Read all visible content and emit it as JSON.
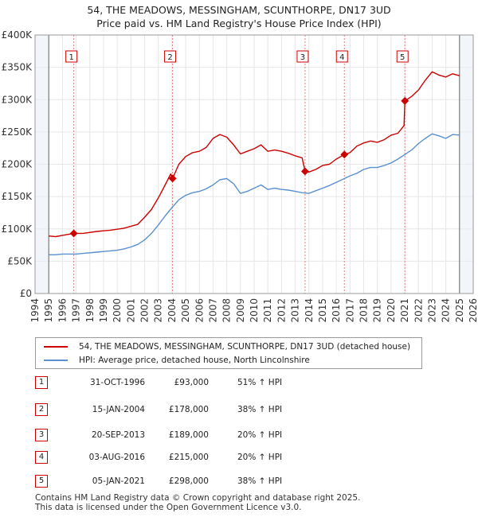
{
  "chart_data": {
    "type": "line",
    "title": "54, THE MEADOWS, MESSINGHAM, SCUNTHORPE, DN17 3UD",
    "subtitle": "Price paid vs. HM Land Registry's House Price Index (HPI)",
    "xlim": [
      1994,
      2026
    ],
    "ylim": [
      0,
      400000
    ],
    "x_ticks": [
      "1994",
      "1995",
      "1996",
      "1997",
      "1998",
      "1999",
      "2000",
      "2001",
      "2002",
      "2003",
      "2004",
      "2005",
      "2006",
      "2007",
      "2008",
      "2009",
      "2010",
      "2011",
      "2012",
      "2013",
      "2014",
      "2015",
      "2016",
      "2017",
      "2018",
      "2019",
      "2020",
      "2021",
      "2022",
      "2023",
      "2024",
      "2025",
      "2026"
    ],
    "y_ticks": [
      {
        "value": 0,
        "label": "£0"
      },
      {
        "value": 50000,
        "label": "£50K"
      },
      {
        "value": 100000,
        "label": "£100K"
      },
      {
        "value": 150000,
        "label": "£150K"
      },
      {
        "value": 200000,
        "label": "£200K"
      },
      {
        "value": 250000,
        "label": "£250K"
      },
      {
        "value": 300000,
        "label": "£300K"
      },
      {
        "value": 350000,
        "label": "£350K"
      },
      {
        "value": 400000,
        "label": "£400K"
      }
    ],
    "data_start": 1995,
    "data_end": 2025,
    "series": [
      {
        "name": "54, THE MEADOWS, MESSINGHAM, SCUNTHORPE, DN17 3UD (detached house)",
        "color": "#cc0000",
        "points": [
          [
            1995.0,
            89000
          ],
          [
            1995.5,
            88000
          ],
          [
            1996.0,
            90000
          ],
          [
            1996.83,
            93000
          ],
          [
            1997.5,
            93000
          ],
          [
            1998.5,
            96000
          ],
          [
            1999.5,
            98000
          ],
          [
            2000.5,
            101000
          ],
          [
            2001.5,
            107000
          ],
          [
            2002.0,
            118000
          ],
          [
            2002.5,
            130000
          ],
          [
            2003.0,
            148000
          ],
          [
            2003.5,
            168000
          ],
          [
            2003.9,
            185000
          ],
          [
            2004.04,
            178000
          ],
          [
            2004.5,
            200000
          ],
          [
            2005.0,
            212000
          ],
          [
            2005.5,
            218000
          ],
          [
            2006.0,
            220000
          ],
          [
            2006.5,
            226000
          ],
          [
            2007.0,
            240000
          ],
          [
            2007.5,
            246000
          ],
          [
            2008.0,
            242000
          ],
          [
            2008.5,
            230000
          ],
          [
            2009.0,
            216000
          ],
          [
            2009.5,
            220000
          ],
          [
            2010.0,
            224000
          ],
          [
            2010.5,
            230000
          ],
          [
            2011.0,
            220000
          ],
          [
            2011.5,
            222000
          ],
          [
            2012.0,
            220000
          ],
          [
            2012.5,
            217000
          ],
          [
            2013.0,
            213000
          ],
          [
            2013.5,
            210000
          ],
          [
            2013.72,
            189000
          ],
          [
            2014.0,
            188000
          ],
          [
            2014.5,
            192000
          ],
          [
            2015.0,
            198000
          ],
          [
            2015.5,
            200000
          ],
          [
            2016.0,
            208000
          ],
          [
            2016.59,
            215000
          ],
          [
            2017.0,
            218000
          ],
          [
            2017.5,
            228000
          ],
          [
            2018.0,
            233000
          ],
          [
            2018.5,
            236000
          ],
          [
            2019.0,
            234000
          ],
          [
            2019.5,
            238000
          ],
          [
            2020.0,
            245000
          ],
          [
            2020.5,
            248000
          ],
          [
            2020.95,
            260000
          ],
          [
            2021.01,
            298000
          ],
          [
            2021.5,
            305000
          ],
          [
            2022.0,
            315000
          ],
          [
            2022.5,
            330000
          ],
          [
            2023.0,
            343000
          ],
          [
            2023.5,
            338000
          ],
          [
            2024.0,
            335000
          ],
          [
            2024.5,
            340000
          ],
          [
            2025.0,
            337000
          ]
        ]
      },
      {
        "name": "HPI: Average price, detached house, North Lincolnshire",
        "color": "#5a8fd0",
        "points": [
          [
            1995.0,
            60000
          ],
          [
            1995.5,
            60000
          ],
          [
            1996.0,
            61000
          ],
          [
            1996.5,
            61000
          ],
          [
            1997.0,
            61000
          ],
          [
            1997.5,
            62000
          ],
          [
            1998.0,
            63000
          ],
          [
            1998.5,
            64000
          ],
          [
            1999.0,
            65000
          ],
          [
            1999.5,
            66000
          ],
          [
            2000.0,
            67000
          ],
          [
            2000.5,
            69000
          ],
          [
            2001.0,
            72000
          ],
          [
            2001.5,
            76000
          ],
          [
            2002.0,
            83000
          ],
          [
            2002.5,
            93000
          ],
          [
            2003.0,
            106000
          ],
          [
            2003.5,
            120000
          ],
          [
            2004.0,
            133000
          ],
          [
            2004.5,
            145000
          ],
          [
            2005.0,
            152000
          ],
          [
            2005.5,
            156000
          ],
          [
            2006.0,
            158000
          ],
          [
            2006.5,
            162000
          ],
          [
            2007.0,
            168000
          ],
          [
            2007.5,
            176000
          ],
          [
            2008.0,
            178000
          ],
          [
            2008.5,
            170000
          ],
          [
            2009.0,
            155000
          ],
          [
            2009.5,
            158000
          ],
          [
            2010.0,
            163000
          ],
          [
            2010.5,
            168000
          ],
          [
            2011.0,
            161000
          ],
          [
            2011.5,
            163000
          ],
          [
            2012.0,
            161000
          ],
          [
            2012.5,
            160000
          ],
          [
            2013.0,
            158000
          ],
          [
            2013.5,
            156000
          ],
          [
            2014.0,
            155000
          ],
          [
            2014.5,
            159000
          ],
          [
            2015.0,
            163000
          ],
          [
            2015.5,
            167000
          ],
          [
            2016.0,
            172000
          ],
          [
            2016.5,
            177000
          ],
          [
            2017.0,
            182000
          ],
          [
            2017.5,
            186000
          ],
          [
            2018.0,
            192000
          ],
          [
            2018.5,
            195000
          ],
          [
            2019.0,
            195000
          ],
          [
            2019.5,
            198000
          ],
          [
            2020.0,
            202000
          ],
          [
            2020.5,
            208000
          ],
          [
            2021.0,
            215000
          ],
          [
            2021.5,
            222000
          ],
          [
            2022.0,
            232000
          ],
          [
            2022.5,
            240000
          ],
          [
            2023.0,
            247000
          ],
          [
            2023.5,
            244000
          ],
          [
            2024.0,
            240000
          ],
          [
            2024.5,
            246000
          ],
          [
            2025.0,
            245000
          ]
        ]
      }
    ],
    "sales": [
      {
        "label": "1",
        "x": 1996.83,
        "y": 93000
      },
      {
        "label": "2",
        "x": 2004.04,
        "y": 178000
      },
      {
        "label": "3",
        "x": 2013.72,
        "y": 189000
      },
      {
        "label": "4",
        "x": 2016.59,
        "y": 215000
      },
      {
        "label": "5",
        "x": 2021.01,
        "y": 298000
      }
    ]
  },
  "legend": {
    "property_label": "54, THE MEADOWS, MESSINGHAM, SCUNTHORPE, DN17 3UD (detached house)",
    "hpi_label": "HPI: Average price, detached house, North Lincolnshire",
    "property_color": "#cc0000",
    "hpi_color": "#5a8fd0"
  },
  "transactions": [
    {
      "num": "1",
      "date": "31-OCT-1996",
      "price": "£93,000",
      "hpi": "51% ↑ HPI"
    },
    {
      "num": "2",
      "date": "15-JAN-2004",
      "price": "£178,000",
      "hpi": "38% ↑ HPI"
    },
    {
      "num": "3",
      "date": "20-SEP-2013",
      "price": "£189,000",
      "hpi": "20% ↑ HPI"
    },
    {
      "num": "4",
      "date": "03-AUG-2016",
      "price": "£215,000",
      "hpi": "20% ↑ HPI"
    },
    {
      "num": "5",
      "date": "05-JAN-2021",
      "price": "£298,000",
      "hpi": "38% ↑ HPI"
    }
  ],
  "footer": {
    "line1": "Contains HM Land Registry data © Crown copyright and database right 2025.",
    "line2": "This data is licensed under the Open Government Licence v3.0."
  }
}
